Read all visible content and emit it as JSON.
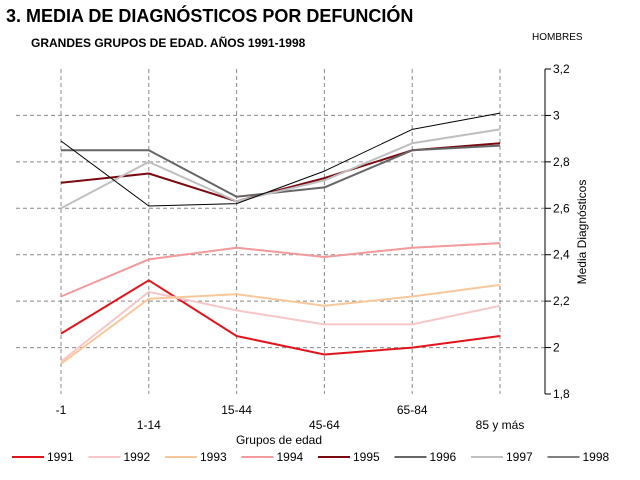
{
  "title": "3. MEDIA DE DIAGNÓSTICOS POR DEFUNCIÓN",
  "subtitle": "GRANDES  GRUPOS DE EDAD. AÑOS 1991-1998",
  "corner_label": "HOMBRES",
  "chart_data": {
    "type": "line",
    "categories": [
      "-1",
      "1-14",
      "15-44",
      "45-64",
      "65-84",
      "85 y más"
    ],
    "xlabel": "Grupos de edad",
    "ylabel": "Media Diagnósticos",
    "ylim": [
      1.8,
      3.2
    ],
    "yticks": [
      1.8,
      2.0,
      2.2,
      2.4,
      2.6,
      2.8,
      3.0,
      3.2
    ],
    "ytick_labels": [
      "1,8",
      "2",
      "2,2",
      "2,4",
      "2,6",
      "2,8",
      "3",
      "3,2"
    ],
    "y_axis_position": "right",
    "grid": true,
    "legend_position": "bottom",
    "series": [
      {
        "name": "1991",
        "color": "#e0151b",
        "values": [
          2.06,
          2.29,
          2.05,
          1.97,
          2.0,
          2.05
        ]
      },
      {
        "name": "1992",
        "color": "#f7c6c8",
        "values": [
          1.94,
          2.24,
          2.16,
          2.1,
          2.1,
          2.18
        ]
      },
      {
        "name": "1993",
        "color": "#f8c89a",
        "values": [
          1.93,
          2.21,
          2.23,
          2.18,
          2.22,
          2.27
        ]
      },
      {
        "name": "1994",
        "color": "#f2999b",
        "values": [
          2.22,
          2.38,
          2.43,
          2.39,
          2.43,
          2.45
        ]
      },
      {
        "name": "1995",
        "color": "#7a0a12",
        "values": [
          2.71,
          2.75,
          2.63,
          2.73,
          2.85,
          2.88
        ]
      },
      {
        "name": "1996",
        "color": "#666666",
        "values": [
          2.85,
          2.85,
          2.65,
          2.69,
          2.85,
          2.87
        ]
      },
      {
        "name": "1997",
        "color": "#bfbfbf",
        "values": [
          2.6,
          2.8,
          2.63,
          2.72,
          2.88,
          2.94
        ]
      },
      {
        "name": "1998",
        "color": "#000000",
        "values": [
          2.89,
          2.61,
          2.62,
          2.76,
          2.94,
          3.01
        ]
      }
    ]
  }
}
